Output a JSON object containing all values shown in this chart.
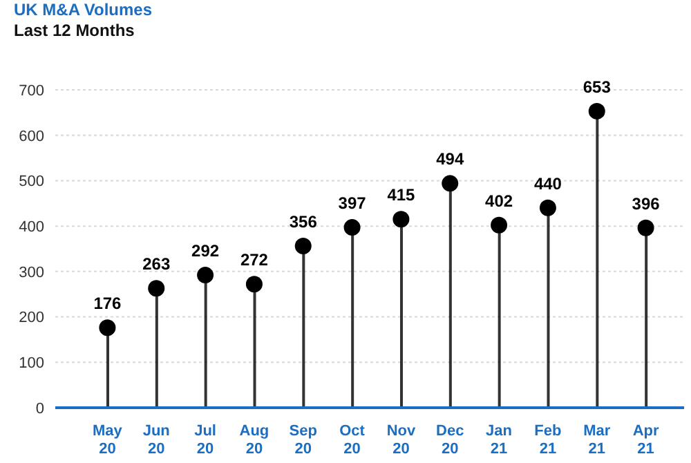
{
  "chart_data": {
    "type": "lollipop",
    "title": "UK M&A Volumes",
    "subtitle": "Last 12 Months",
    "categories": [
      "May 20",
      "Jun 20",
      "Jul 20",
      "Aug 20",
      "Sep 20",
      "Oct 20",
      "Nov 20",
      "Dec 20",
      "Jan 21",
      "Feb 21",
      "Mar 21",
      "Apr 21"
    ],
    "values": [
      176,
      263,
      292,
      272,
      356,
      397,
      415,
      494,
      402,
      440,
      653,
      396
    ],
    "color": "#000000",
    "marker": "circle",
    "data_labels": true,
    "grid": "y",
    "ylim": [
      0,
      700
    ],
    "yticks": [
      0,
      100,
      200,
      300,
      400,
      500,
      600,
      700
    ]
  }
}
